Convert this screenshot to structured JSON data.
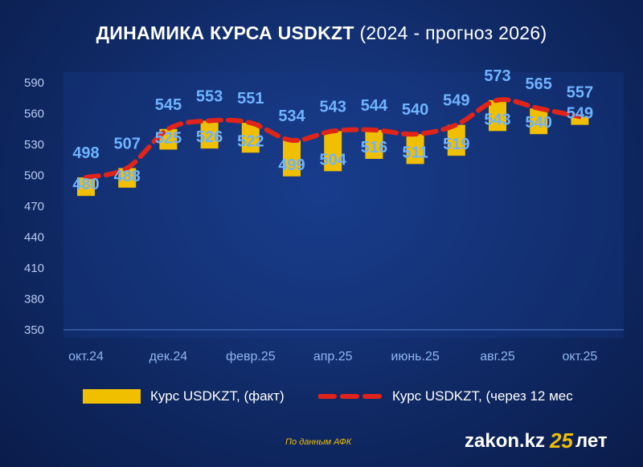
{
  "title": {
    "bold": "ДИНАМИКА КУРСА USDKZT",
    "rest": "(2024 - прогноз 2026)"
  },
  "chart_data": {
    "type": "bar",
    "title": "ДИНАМИКА КУРСА USDKZT (2024 - прогноз 2026)",
    "ylim": [
      350,
      590
    ],
    "yticks": [
      590,
      560,
      530,
      500,
      470,
      440,
      410,
      380,
      350
    ],
    "x_tick_labels": [
      "окт.24",
      "дек.24",
      "февр.25",
      "апр.25",
      "июнь.25",
      "авг.25",
      "окт.25"
    ],
    "x_tick_positions": [
      0,
      2,
      4,
      6,
      8,
      10,
      12
    ],
    "series": [
      {
        "name": "Курс USDKZT, (факт)",
        "type": "bar",
        "color": "#f0c000",
        "values": [
          480,
          488,
          525,
          526,
          522,
          499,
          504,
          516,
          511,
          519,
          543,
          540,
          549
        ]
      },
      {
        "name": "Курс USDKZT, (через 12 мес",
        "type": "line",
        "color": "#e0241a",
        "values": [
          498,
          507,
          545,
          553,
          551,
          534,
          543,
          544,
          540,
          549,
          573,
          565,
          557
        ]
      }
    ]
  },
  "legend": {
    "fact": "Курс USDKZT, (факт)",
    "forecast": "Курс USDKZT, (через 12 мес"
  },
  "source": "По данным АФК",
  "brand": {
    "site": "zakon.kz",
    "num": "25",
    "suffix": "лет"
  }
}
